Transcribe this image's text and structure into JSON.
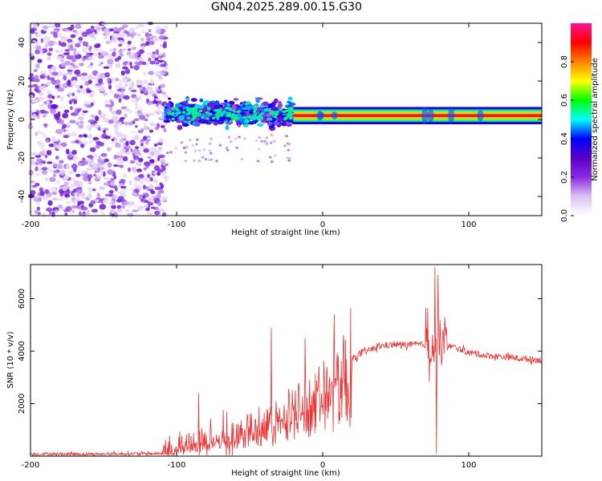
{
  "title": "GN04.2025.289.00.15.G30",
  "chart_data": [
    {
      "type": "heatmap",
      "xlabel": "Height of straight line (km)",
      "ylabel": "Frequency (Hz)",
      "xlim": [
        -200,
        150
      ],
      "ylim": [
        -50,
        50
      ],
      "x_ticks": [
        -200,
        -100,
        0,
        100
      ],
      "y_ticks": [
        -40,
        -20,
        0,
        20,
        40
      ],
      "colorbar": {
        "label": "Normalized spectral amplitude",
        "range": [
          0,
          1
        ],
        "ticks": [
          0.0,
          0.2,
          0.4,
          0.6,
          0.8
        ],
        "colors": [
          "#ffffff",
          "#d9c2f2",
          "#8a2be2",
          "#5a00c8",
          "#0000ff",
          "#00ffff",
          "#00ff00",
          "#ffff00",
          "#ff8000",
          "#ff0000",
          "#ff1493"
        ]
      },
      "regions": [
        {
          "x_range": [
            -200,
            -107
          ],
          "f_range": [
            -50,
            50
          ],
          "description": "scattered weak noise",
          "amplitude_range": [
            0.05,
            0.25
          ]
        },
        {
          "x_range": [
            -107,
            -20
          ],
          "f_range": [
            -8,
            12
          ],
          "description": "broadened signal",
          "amplitude_range": [
            0.15,
            0.45
          ]
        },
        {
          "x_range": [
            -20,
            150
          ],
          "f_center": 2,
          "description": "narrow carrier line",
          "amplitude": 0.95
        }
      ]
    },
    {
      "type": "line",
      "xlabel": "Height of straight line (km)",
      "ylabel": "SNR (10 * v/v)",
      "xlim": [
        -200,
        150
      ],
      "ylim": [
        0,
        7300
      ],
      "x_ticks": [
        -200,
        -100,
        0,
        100
      ],
      "y_ticks": [
        2000,
        4000,
        6000
      ],
      "color": "#ee3333",
      "series": [
        {
          "name": "SNR",
          "x": [
            -200,
            -150,
            -110,
            -100,
            -80,
            -60,
            -40,
            -20,
            0,
            10,
            20,
            30,
            40,
            50,
            60,
            70,
            80,
            90,
            100,
            110,
            120,
            130,
            140,
            150
          ],
          "y": [
            80,
            80,
            100,
            350,
            650,
            900,
            1300,
            1900,
            2700,
            3100,
            3700,
            4000,
            4200,
            4250,
            4250,
            4250,
            4300,
            4150,
            3950,
            3850,
            3800,
            3750,
            3700,
            3650
          ]
        }
      ],
      "spikes": [
        {
          "x": -85,
          "y": 2400
        },
        {
          "x": -35,
          "y": 4900
        },
        {
          "x": -12,
          "y": 4500
        },
        {
          "x": 8,
          "y": 5400
        },
        {
          "x": 77,
          "y": 7200
        },
        {
          "x": 78,
          "y": 100
        },
        {
          "x": 79,
          "y": 6900
        }
      ]
    }
  ]
}
